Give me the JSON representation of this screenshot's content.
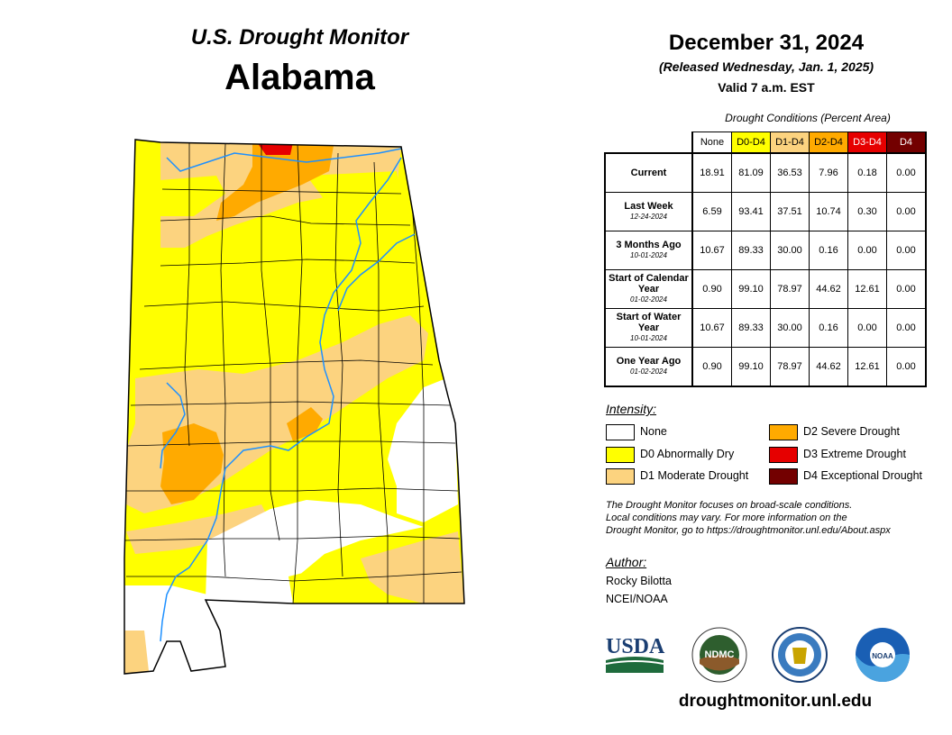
{
  "header": {
    "subtitle": "U.S. Drought Monitor",
    "state": "Alabama"
  },
  "info": {
    "date": "December 31, 2024",
    "released": "(Released Wednesday, Jan. 1, 2025)",
    "valid": "Valid 7 a.m. EST"
  },
  "table": {
    "title": "Drought Conditions (Percent Area)",
    "columns": [
      {
        "label": "None",
        "color": "#ffffff",
        "text_color": "#000000"
      },
      {
        "label": "D0-D4",
        "color": "#ffff00",
        "text_color": "#000000"
      },
      {
        "label": "D1-D4",
        "color": "#fcd37f",
        "text_color": "#000000"
      },
      {
        "label": "D2-D4",
        "color": "#ffaa00",
        "text_color": "#000000"
      },
      {
        "label": "D3-D4",
        "color": "#e60000",
        "text_color": "#ffffff"
      },
      {
        "label": "D4",
        "color": "#730000",
        "text_color": "#ffffff"
      }
    ],
    "rows": [
      {
        "label": "Current",
        "date": "",
        "values": [
          "18.91",
          "81.09",
          "36.53",
          "7.96",
          "0.18",
          "0.00"
        ]
      },
      {
        "label": "Last Week",
        "date": "12-24-2024",
        "values": [
          "6.59",
          "93.41",
          "37.51",
          "10.74",
          "0.30",
          "0.00"
        ]
      },
      {
        "label": "3 Months Ago",
        "date": "10-01-2024",
        "values": [
          "10.67",
          "89.33",
          "30.00",
          "0.16",
          "0.00",
          "0.00"
        ]
      },
      {
        "label": "Start of Calendar Year",
        "date": "01-02-2024",
        "values": [
          "0.90",
          "99.10",
          "78.97",
          "44.62",
          "12.61",
          "0.00"
        ]
      },
      {
        "label": "Start of Water Year",
        "date": "10-01-2024",
        "values": [
          "10.67",
          "89.33",
          "30.00",
          "0.16",
          "0.00",
          "0.00"
        ]
      },
      {
        "label": "One Year Ago",
        "date": "01-02-2024",
        "values": [
          "0.90",
          "99.10",
          "78.97",
          "44.62",
          "12.61",
          "0.00"
        ]
      }
    ]
  },
  "legend": {
    "title": "Intensity:",
    "items": [
      {
        "label": "None",
        "color": "#ffffff"
      },
      {
        "label": "D0 Abnormally Dry",
        "color": "#ffff00"
      },
      {
        "label": "D1 Moderate Drought",
        "color": "#fcd37f"
      },
      {
        "label": "D2 Severe Drought",
        "color": "#ffaa00"
      },
      {
        "label": "D3 Extreme Drought",
        "color": "#e60000"
      },
      {
        "label": "D4 Exceptional Drought",
        "color": "#730000"
      }
    ]
  },
  "note": {
    "line1": "The Drought Monitor focuses on broad-scale conditions.",
    "line2": "Local conditions may vary. For more information on the",
    "line3": "Drought Monitor, go to https://droughtmonitor.unl.edu/About.aspx"
  },
  "author": {
    "title": "Author:",
    "name": "Rocky Bilotta",
    "org": "NCEI/NOAA"
  },
  "logos": {
    "usda": "USDA",
    "ndmc": "NDMC",
    "noaa": "NOAA"
  },
  "footer_url": "droughtmonitor.unl.edu",
  "map_colors": {
    "none": "#ffffff",
    "d0": "#ffff00",
    "d1": "#fcd37f",
    "d2": "#ffaa00",
    "d3": "#e60000",
    "river": "#1e90ff"
  }
}
